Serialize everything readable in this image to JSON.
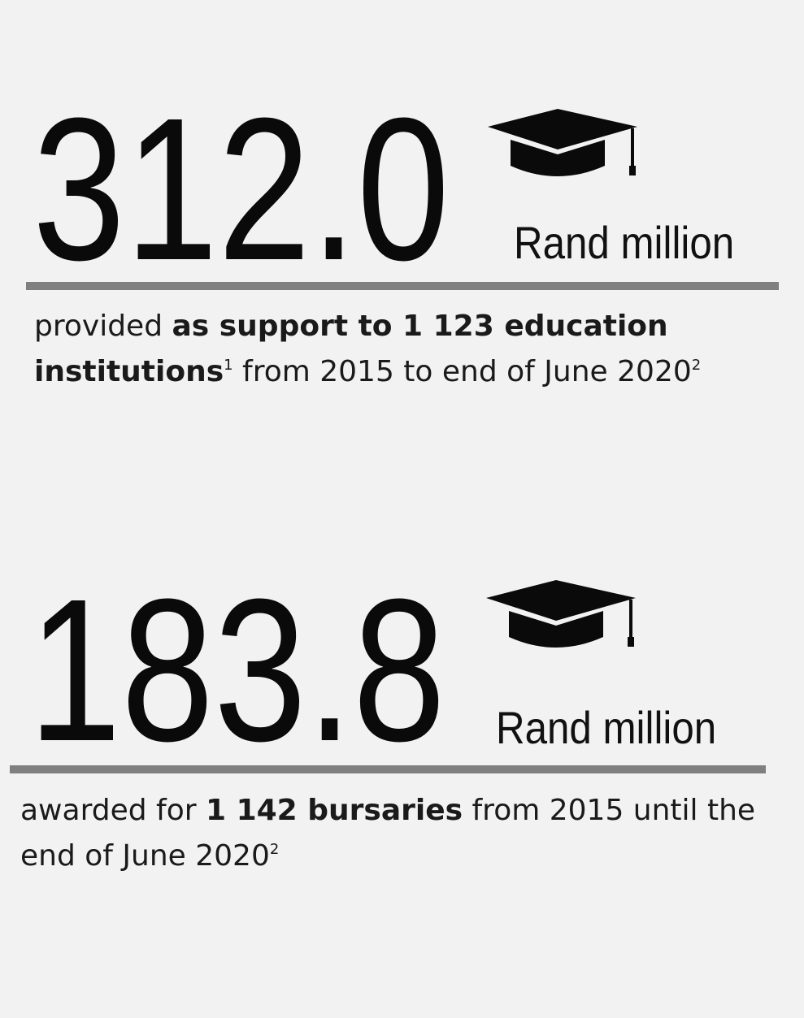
{
  "stats": [
    {
      "value": "312.0",
      "unit": "Rand million",
      "description": [
        "provided ",
        "as support to 1 123 education institutions",
        "1",
        " from 2015 to end of June 2020",
        "2"
      ]
    },
    {
      "value": "183.8",
      "unit": "Rand million",
      "description": [
        "awarded for ",
        "1 142 bursaries",
        " from 2015 until the end of June 2020",
        "2"
      ]
    }
  ]
}
